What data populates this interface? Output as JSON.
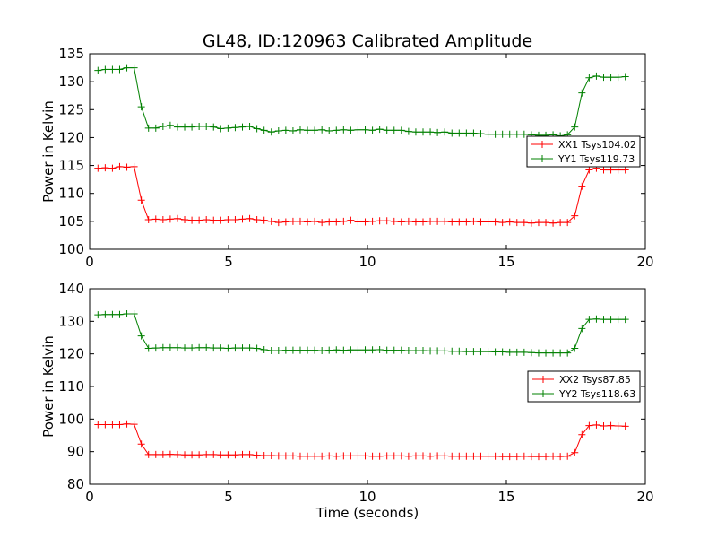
{
  "figure": {
    "title": "GL48, ID:120963 Calibrated Amplitude",
    "background": "#ffffff"
  },
  "chart_data": [
    {
      "type": "line",
      "ylabel": "Power in Kelvin",
      "xlabel": "",
      "xlim": [
        0,
        20
      ],
      "ylim": [
        100,
        135
      ],
      "xticks": [
        0,
        5,
        10,
        15,
        20
      ],
      "yticks": [
        100,
        105,
        110,
        115,
        120,
        125,
        130,
        135
      ],
      "grid": false,
      "legend_position": "center-right",
      "x": [
        0.3,
        0.56,
        0.82,
        1.08,
        1.34,
        1.6,
        1.86,
        2.12,
        2.38,
        2.64,
        2.9,
        3.16,
        3.42,
        3.68,
        3.94,
        4.2,
        4.46,
        4.72,
        4.98,
        5.24,
        5.5,
        5.76,
        6.02,
        6.28,
        6.54,
        6.8,
        7.06,
        7.32,
        7.58,
        7.84,
        8.1,
        8.36,
        8.62,
        8.88,
        9.14,
        9.4,
        9.66,
        9.92,
        10.18,
        10.44,
        10.7,
        10.96,
        11.22,
        11.48,
        11.74,
        12.0,
        12.26,
        12.52,
        12.78,
        13.04,
        13.3,
        13.56,
        13.82,
        14.08,
        14.34,
        14.6,
        14.86,
        15.12,
        15.38,
        15.64,
        15.9,
        16.16,
        16.42,
        16.68,
        16.94,
        17.2,
        17.46,
        17.72,
        17.98,
        18.24,
        18.5,
        18.76,
        19.02,
        19.28
      ],
      "series": [
        {
          "name": "XX1 Tsys104.02",
          "color": "#ff0000",
          "values": [
            114.5,
            114.6,
            114.5,
            114.8,
            114.7,
            114.8,
            108.8,
            105.3,
            105.4,
            105.3,
            105.4,
            105.5,
            105.3,
            105.2,
            105.2,
            105.3,
            105.2,
            105.2,
            105.3,
            105.3,
            105.4,
            105.5,
            105.3,
            105.2,
            105.0,
            104.8,
            104.9,
            105.0,
            105.0,
            104.9,
            105.0,
            104.8,
            104.9,
            104.9,
            105.0,
            105.2,
            104.9,
            104.9,
            105.0,
            105.1,
            105.1,
            105.0,
            104.9,
            105.0,
            104.9,
            104.9,
            105.0,
            105.0,
            105.0,
            104.9,
            104.9,
            104.9,
            105.0,
            104.9,
            104.9,
            104.9,
            104.8,
            104.9,
            104.8,
            104.8,
            104.7,
            104.8,
            104.8,
            104.7,
            104.8,
            104.8,
            106.0,
            111.3,
            114.2,
            114.5,
            114.2,
            114.2,
            114.2,
            114.2
          ]
        },
        {
          "name": "YY1 Tsys119.73",
          "color": "#008000",
          "values": [
            132.0,
            132.2,
            132.2,
            132.2,
            132.5,
            132.5,
            125.5,
            121.7,
            121.7,
            122.0,
            122.2,
            121.9,
            121.9,
            121.9,
            122.0,
            122.0,
            121.9,
            121.6,
            121.7,
            121.8,
            121.9,
            122.0,
            121.6,
            121.3,
            121.0,
            121.2,
            121.3,
            121.2,
            121.4,
            121.3,
            121.3,
            121.4,
            121.2,
            121.3,
            121.4,
            121.3,
            121.4,
            121.4,
            121.3,
            121.5,
            121.3,
            121.3,
            121.3,
            121.1,
            121.0,
            121.0,
            121.0,
            120.9,
            121.0,
            120.8,
            120.8,
            120.8,
            120.8,
            120.7,
            120.6,
            120.6,
            120.6,
            120.6,
            120.6,
            120.6,
            120.5,
            120.4,
            120.4,
            120.5,
            120.3,
            120.5,
            121.9,
            128.0,
            130.7,
            131.0,
            130.8,
            130.8,
            130.8,
            130.9
          ]
        }
      ]
    },
    {
      "type": "line",
      "ylabel": "Power in Kelvin",
      "xlabel": "Time (seconds)",
      "xlim": [
        0,
        20
      ],
      "ylim": [
        80,
        140
      ],
      "xticks": [
        0,
        5,
        10,
        15,
        20
      ],
      "yticks": [
        80,
        90,
        100,
        110,
        120,
        130,
        140
      ],
      "grid": false,
      "legend_position": "center-right",
      "x": [
        0.3,
        0.56,
        0.82,
        1.08,
        1.34,
        1.6,
        1.86,
        2.12,
        2.38,
        2.64,
        2.9,
        3.16,
        3.42,
        3.68,
        3.94,
        4.2,
        4.46,
        4.72,
        4.98,
        5.24,
        5.5,
        5.76,
        6.02,
        6.28,
        6.54,
        6.8,
        7.06,
        7.32,
        7.58,
        7.84,
        8.1,
        8.36,
        8.62,
        8.88,
        9.14,
        9.4,
        9.66,
        9.92,
        10.18,
        10.44,
        10.7,
        10.96,
        11.22,
        11.48,
        11.74,
        12.0,
        12.26,
        12.52,
        12.78,
        13.04,
        13.3,
        13.56,
        13.82,
        14.08,
        14.34,
        14.6,
        14.86,
        15.12,
        15.38,
        15.64,
        15.9,
        16.16,
        16.42,
        16.68,
        16.94,
        17.2,
        17.46,
        17.72,
        17.98,
        18.24,
        18.5,
        18.76,
        19.02,
        19.28
      ],
      "series": [
        {
          "name": "XX2 Tsys87.85",
          "color": "#ff0000",
          "values": [
            98.3,
            98.3,
            98.3,
            98.3,
            98.5,
            98.4,
            92.3,
            89.1,
            89.1,
            89.1,
            89.2,
            89.1,
            89.0,
            89.0,
            89.0,
            89.1,
            89.1,
            89.0,
            89.0,
            89.0,
            89.1,
            89.1,
            88.9,
            88.8,
            88.8,
            88.7,
            88.7,
            88.7,
            88.6,
            88.6,
            88.6,
            88.6,
            88.7,
            88.6,
            88.7,
            88.7,
            88.7,
            88.7,
            88.6,
            88.6,
            88.7,
            88.7,
            88.7,
            88.6,
            88.7,
            88.7,
            88.6,
            88.7,
            88.7,
            88.6,
            88.6,
            88.6,
            88.6,
            88.6,
            88.6,
            88.6,
            88.5,
            88.5,
            88.5,
            88.6,
            88.5,
            88.5,
            88.5,
            88.6,
            88.5,
            88.6,
            89.7,
            95.2,
            98.0,
            98.2,
            97.9,
            98.0,
            97.9,
            97.8
          ]
        },
        {
          "name": "YY2 Tsys118.63",
          "color": "#008000",
          "values": [
            132.0,
            132.1,
            132.1,
            132.1,
            132.3,
            132.3,
            125.5,
            121.7,
            121.8,
            121.9,
            121.9,
            121.9,
            121.8,
            121.8,
            121.9,
            121.9,
            121.8,
            121.8,
            121.7,
            121.8,
            121.8,
            121.8,
            121.7,
            121.3,
            121.0,
            121.0,
            121.1,
            121.1,
            121.1,
            121.1,
            121.1,
            121.0,
            121.1,
            121.2,
            121.1,
            121.2,
            121.2,
            121.2,
            121.2,
            121.3,
            121.1,
            121.1,
            121.1,
            121.0,
            121.0,
            121.0,
            120.9,
            120.9,
            120.9,
            120.8,
            120.8,
            120.7,
            120.7,
            120.7,
            120.7,
            120.6,
            120.6,
            120.5,
            120.5,
            120.5,
            120.4,
            120.3,
            120.3,
            120.3,
            120.3,
            120.3,
            121.7,
            127.8,
            130.6,
            130.7,
            130.6,
            130.6,
            130.6,
            130.6
          ]
        }
      ]
    }
  ]
}
